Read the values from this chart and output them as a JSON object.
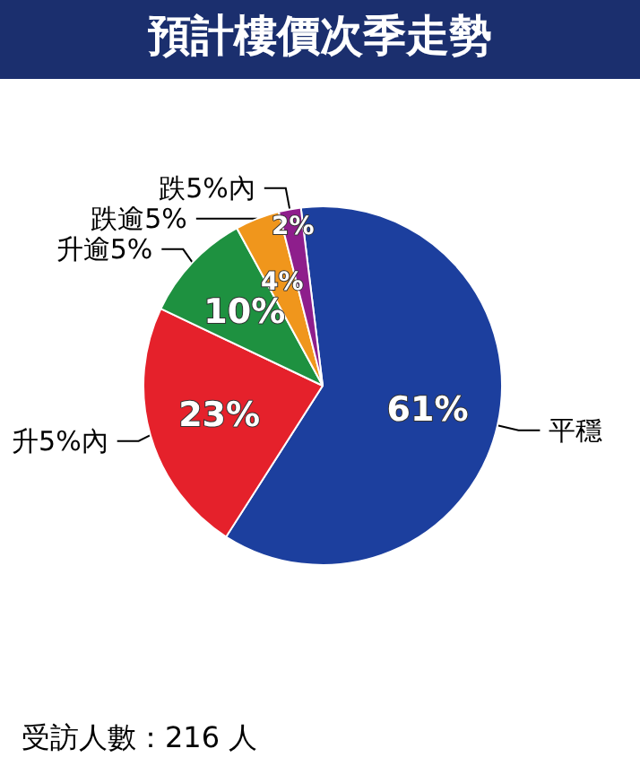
{
  "chart_data": {
    "type": "pie",
    "title": "預計樓價次季走勢",
    "categories": [
      "平穩",
      "升5%內",
      "升逾5%",
      "跌逾5%",
      "跌5%內"
    ],
    "values": [
      61,
      23,
      10,
      4,
      2
    ],
    "colors": [
      "#1c3f9e",
      "#e5212b",
      "#1e9140",
      "#f0961c",
      "#8e1e8c"
    ],
    "value_labels": [
      "61%",
      "23%",
      "10%",
      "4%",
      "2%"
    ],
    "annotations": [
      "受訪人數：216 人"
    ]
  }
}
